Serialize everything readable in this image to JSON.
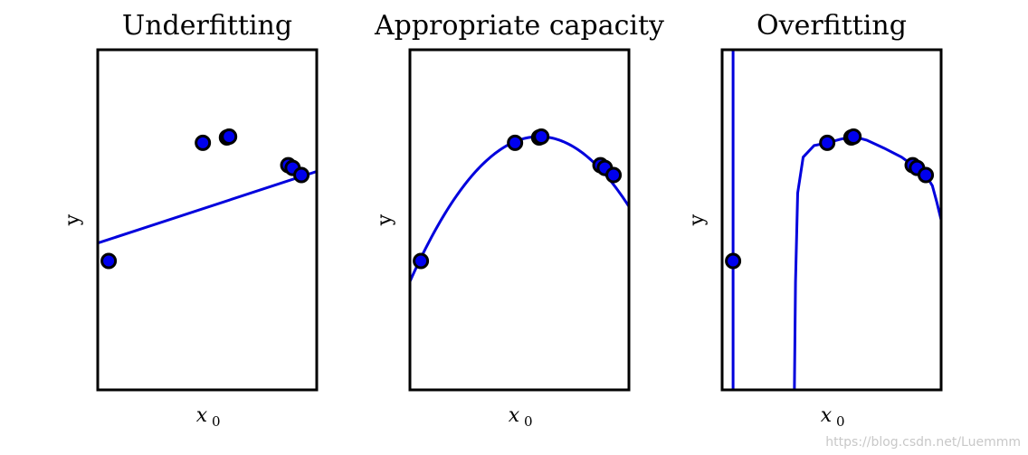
{
  "chart_data": [
    {
      "type": "scatter",
      "title": "Underfitting",
      "xlabel": "x",
      "xlabel_subscript": "0",
      "ylabel": "y",
      "xlim": [
        0,
        1
      ],
      "ylim": [
        -2.6,
        1.2
      ],
      "points": [
        {
          "x": 0.05,
          "y": -1.16
        },
        {
          "x": 0.48,
          "y": 0.16
        },
        {
          "x": 0.59,
          "y": 0.22
        },
        {
          "x": 0.6,
          "y": 0.23
        },
        {
          "x": 0.87,
          "y": -0.09
        },
        {
          "x": 0.89,
          "y": -0.12
        },
        {
          "x": 0.93,
          "y": -0.2
        }
      ],
      "fit": {
        "kind": "linear",
        "coeffs": [
          -0.96,
          0.8
        ]
      },
      "grid": false
    },
    {
      "type": "scatter",
      "title": "Appropriate capacity",
      "xlabel": "x",
      "xlabel_subscript": "0",
      "ylabel": "y",
      "xlim": [
        0,
        1
      ],
      "ylim": [
        -2.6,
        1.2
      ],
      "points": [
        {
          "x": 0.05,
          "y": -1.16
        },
        {
          "x": 0.48,
          "y": 0.16
        },
        {
          "x": 0.59,
          "y": 0.22
        },
        {
          "x": 0.6,
          "y": 0.23
        },
        {
          "x": 0.87,
          "y": -0.09
        },
        {
          "x": 0.89,
          "y": -0.12
        },
        {
          "x": 0.93,
          "y": -0.2
        }
      ],
      "fit": {
        "kind": "quadratic",
        "vertex_x": 0.59,
        "vertex_y": 0.23,
        "a": -4.65
      },
      "grid": false
    },
    {
      "type": "scatter",
      "title": "Overfitting",
      "xlabel": "x",
      "xlabel_subscript": "0",
      "ylabel": "y",
      "xlim": [
        0,
        1
      ],
      "ylim": [
        -2.6,
        1.2
      ],
      "points": [
        {
          "x": 0.05,
          "y": -1.16
        },
        {
          "x": 0.48,
          "y": 0.16
        },
        {
          "x": 0.59,
          "y": 0.22
        },
        {
          "x": 0.6,
          "y": 0.23
        },
        {
          "x": 0.87,
          "y": -0.09
        },
        {
          "x": 0.89,
          "y": -0.12
        },
        {
          "x": 0.93,
          "y": -0.2
        }
      ],
      "fit": {
        "kind": "polyline",
        "segments": [
          [
            [
              0.05,
              -2.6
            ],
            [
              0.05,
              1.2
            ]
          ],
          [
            [
              0.33,
              -2.6
            ],
            [
              0.335,
              -1.4
            ],
            [
              0.345,
              -0.4
            ],
            [
              0.37,
              0.0
            ],
            [
              0.42,
              0.13
            ],
            [
              0.48,
              0.16
            ],
            [
              0.54,
              0.2
            ],
            [
              0.6,
              0.23
            ],
            [
              0.66,
              0.19
            ],
            [
              0.74,
              0.1
            ],
            [
              0.82,
              0.0
            ],
            [
              0.87,
              -0.09
            ],
            [
              0.9,
              -0.13
            ],
            [
              0.93,
              -0.2
            ],
            [
              0.96,
              -0.32
            ],
            [
              0.98,
              -0.5
            ],
            [
              1.0,
              -0.7
            ]
          ]
        ]
      },
      "grid": false
    }
  ],
  "watermark": "https://blog.csdn.net/Luemmm",
  "colors": {
    "series": "#0000ee",
    "edge": "#000000",
    "line": "#0000dd",
    "axes": "#000000"
  }
}
